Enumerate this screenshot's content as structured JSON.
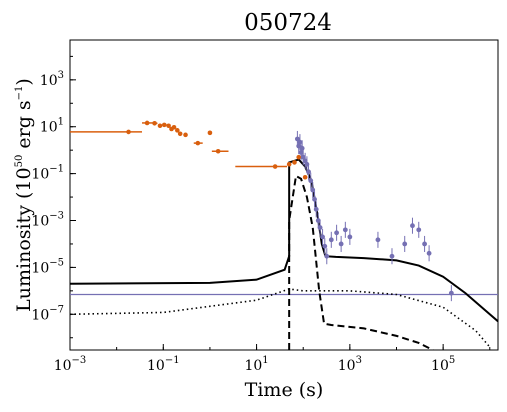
{
  "chart_data": {
    "type": "scatter",
    "title": "050724",
    "xlabel": "Time (s)",
    "ylabel_prefix": "Luminosity (10",
    "ylabel_exp1": "50",
    "ylabel_mid": " erg s",
    "ylabel_exp2": "−1",
    "ylabel_suffix": ")",
    "xscale": "log",
    "yscale": "log",
    "xlim": [
      0.001,
      1500000
    ],
    "ylim": [
      3e-09,
      50000
    ],
    "x_ticks": [
      {
        "base": "10",
        "exp": "−3",
        "value": 0.001
      },
      {
        "base": "10",
        "exp": "−1",
        "value": 0.1
      },
      {
        "base": "10",
        "exp": "1",
        "value": 10
      },
      {
        "base": "10",
        "exp": "3",
        "value": 1000
      },
      {
        "base": "10",
        "exp": "5",
        "value": 100000
      }
    ],
    "y_ticks": [
      {
        "base": "10",
        "exp": "−7",
        "value": 1e-07
      },
      {
        "base": "10",
        "exp": "−5",
        "value": 1e-05
      },
      {
        "base": "10",
        "exp": "−3",
        "value": 0.001
      },
      {
        "base": "10",
        "exp": "−1",
        "value": 0.1
      },
      {
        "base": "10",
        "exp": "1",
        "value": 10
      },
      {
        "base": "10",
        "exp": "3",
        "value": 1000
      }
    ],
    "colors": {
      "orange": "#d95f0e",
      "purple": "#7570b3",
      "model": "#000000"
    },
    "orange_points": [
      {
        "x": 0.018,
        "y": 6.0,
        "xlo": 0.001,
        "xhi": 0.035
      },
      {
        "x": 0.045,
        "y": 14.5,
        "xlo": 0.035,
        "xhi": 0.06
      },
      {
        "x": 0.065,
        "y": 14.0,
        "xlo": 0.06,
        "xhi": 0.075
      },
      {
        "x": 0.085,
        "y": 11.0
      },
      {
        "x": 0.105,
        "y": 12.0
      },
      {
        "x": 0.13,
        "y": 11.0
      },
      {
        "x": 0.15,
        "y": 8.0
      },
      {
        "x": 0.17,
        "y": 9.5
      },
      {
        "x": 0.2,
        "y": 7.0
      },
      {
        "x": 0.23,
        "y": 5.0
      },
      {
        "x": 0.3,
        "y": 4.5
      },
      {
        "x": 0.55,
        "y": 2.0,
        "xlo": 0.45,
        "xhi": 0.7
      },
      {
        "x": 1.0,
        "y": 5.5
      },
      {
        "x": 1.5,
        "y": 0.9,
        "xlo": 1.1,
        "xhi": 2.5
      },
      {
        "x": 25,
        "y": 0.2,
        "xlo": 3.5,
        "xhi": 45
      },
      {
        "x": 50,
        "y": 0.25
      },
      {
        "x": 65,
        "y": 0.3
      },
      {
        "x": 80,
        "y": 0.5
      },
      {
        "x": 110,
        "y": 0.07
      }
    ],
    "purple_points": [
      {
        "x": 75,
        "y": 3.0
      },
      {
        "x": 80,
        "y": 1.5
      },
      {
        "x": 85,
        "y": 2.2
      },
      {
        "x": 90,
        "y": 0.8
      },
      {
        "x": 95,
        "y": 1.2
      },
      {
        "x": 100,
        "y": 0.5
      },
      {
        "x": 110,
        "y": 0.35
      },
      {
        "x": 120,
        "y": 0.25
      },
      {
        "x": 130,
        "y": 0.12
      },
      {
        "x": 145,
        "y": 0.05
      },
      {
        "x": 160,
        "y": 0.02
      },
      {
        "x": 175,
        "y": 0.008
      },
      {
        "x": 190,
        "y": 0.003
      },
      {
        "x": 210,
        "y": 0.001
      },
      {
        "x": 230,
        "y": 0.0005
      },
      {
        "x": 260,
        "y": 0.0002
      },
      {
        "x": 290,
        "y": 8e-05
      },
      {
        "x": 320,
        "y": 3e-05
      },
      {
        "x": 400,
        "y": 0.00015
      },
      {
        "x": 520,
        "y": 0.0003
      },
      {
        "x": 650,
        "y": 0.0001
      },
      {
        "x": 800,
        "y": 0.0004
      },
      {
        "x": 1000,
        "y": 0.0002
      },
      {
        "x": 4000,
        "y": 0.00015
      },
      {
        "x": 8000,
        "y": 3e-05
      },
      {
        "x": 15000,
        "y": 0.0001
      },
      {
        "x": 22000,
        "y": 0.0006
      },
      {
        "x": 30000,
        "y": 0.0004
      },
      {
        "x": 40000,
        "y": 0.0001
      },
      {
        "x": 50000,
        "y": 4e-05
      },
      {
        "x": 150000,
        "y": 8e-07
      }
    ],
    "purple_hline": {
      "y": 7e-07,
      "xstart": 0.001,
      "xend": 1500000
    },
    "model_solid": [
      [
        0.001,
        2e-06
      ],
      [
        1,
        2.2e-06
      ],
      [
        10,
        3e-06
      ],
      [
        40,
        8e-06
      ],
      [
        50,
        3e-05
      ],
      [
        50,
        0.3
      ],
      [
        80,
        0.4
      ],
      [
        110,
        0.2
      ],
      [
        150,
        0.05
      ],
      [
        200,
        0.002
      ],
      [
        250,
        0.0001
      ],
      [
        300,
        3e-05
      ],
      [
        500,
        2.8e-05
      ],
      [
        2000,
        2.5e-05
      ],
      [
        10000,
        2e-05
      ],
      [
        30000,
        1.2e-05
      ],
      [
        100000,
        4e-06
      ],
      [
        300000,
        8e-07
      ],
      [
        1000000,
        1e-07
      ],
      [
        1500000,
        5e-08
      ]
    ],
    "model_dashed": [
      [
        50,
        3e-09
      ],
      [
        50,
        0.001
      ],
      [
        70,
        0.08
      ],
      [
        90,
        0.06
      ],
      [
        120,
        0.01
      ],
      [
        160,
        0.0005
      ],
      [
        220,
        1e-06
      ],
      [
        280,
        4e-08
      ],
      [
        400,
        3.5e-08
      ],
      [
        2000,
        2.5e-08
      ],
      [
        10000,
        1.2e-08
      ],
      [
        30000,
        6e-09
      ],
      [
        60000,
        3e-09
      ]
    ],
    "model_dotted": [
      [
        0.001,
        1e-07
      ],
      [
        0.1,
        1.2e-07
      ],
      [
        10,
        4e-07
      ],
      [
        50,
        1.2e-06
      ],
      [
        100,
        1e-06
      ],
      [
        1000,
        1e-06
      ],
      [
        10000,
        7e-07
      ],
      [
        100000,
        2e-07
      ],
      [
        500000,
        2e-08
      ],
      [
        1000000,
        4e-09
      ]
    ]
  }
}
